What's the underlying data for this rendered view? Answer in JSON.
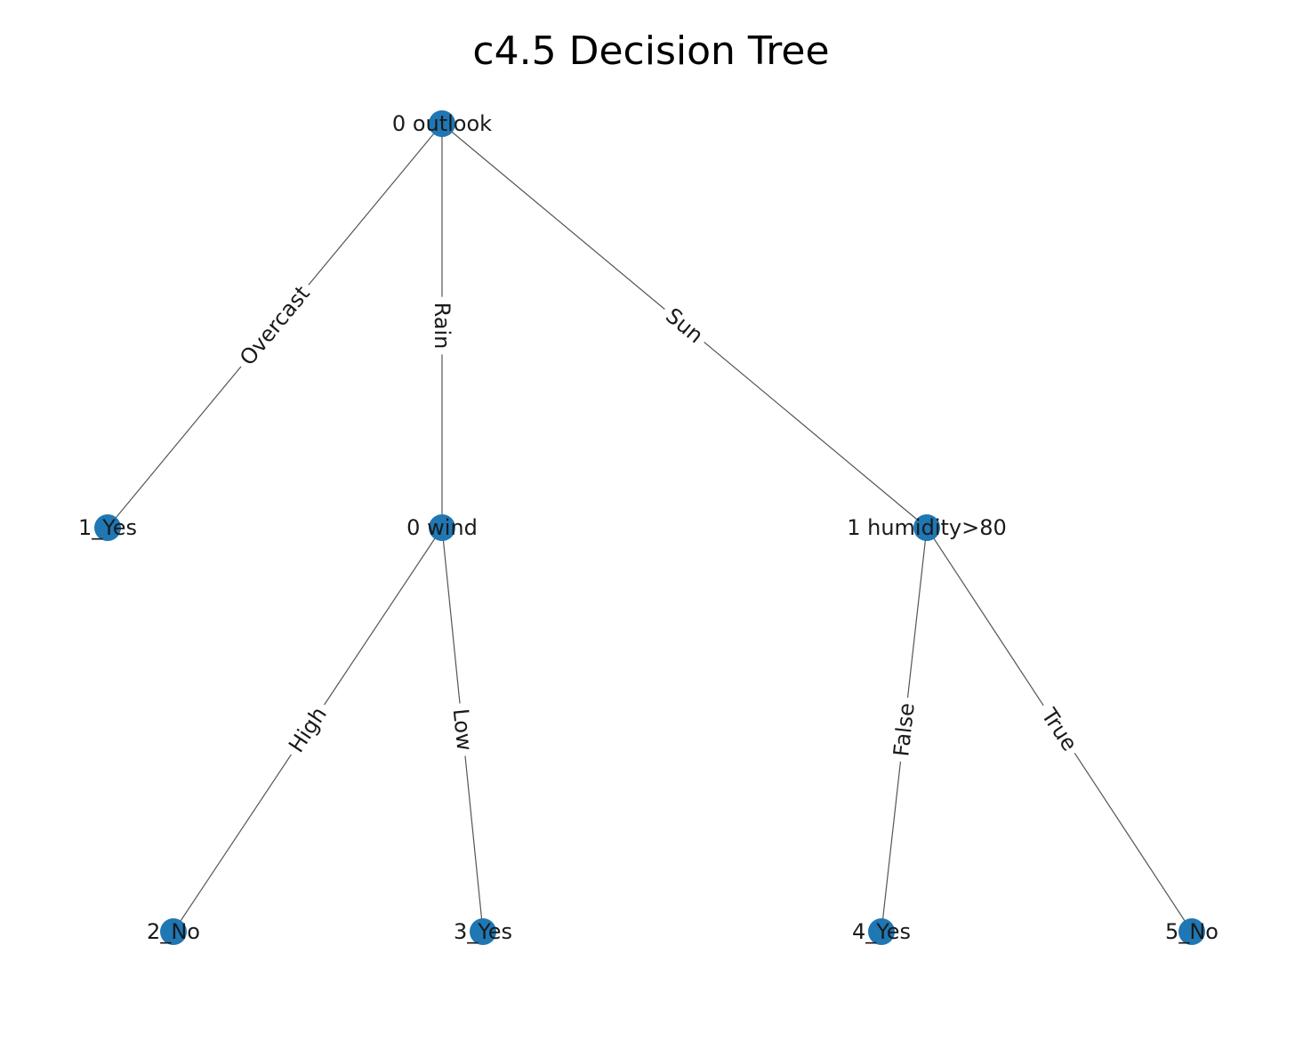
{
  "title": "c4.5 Decision Tree",
  "colors": {
    "node": "#1f77b4",
    "edge": "#555555",
    "text": "#1a1a1a",
    "background": "#ffffff"
  },
  "nodes": [
    {
      "id": "n0",
      "label": "0 outlook"
    },
    {
      "id": "n1",
      "label": "1_Yes"
    },
    {
      "id": "n2",
      "label": "0 wind"
    },
    {
      "id": "n3",
      "label": "1 humidity>80"
    },
    {
      "id": "n4",
      "label": "2_No"
    },
    {
      "id": "n5",
      "label": "3_Yes"
    },
    {
      "id": "n6",
      "label": "4_Yes"
    },
    {
      "id": "n7",
      "label": "5_No"
    }
  ],
  "edges": [
    {
      "from": "n0",
      "to": "n1",
      "label": "Overcast"
    },
    {
      "from": "n0",
      "to": "n2",
      "label": "Rain"
    },
    {
      "from": "n0",
      "to": "n3",
      "label": "Sun"
    },
    {
      "from": "n2",
      "to": "n4",
      "label": "High"
    },
    {
      "from": "n2",
      "to": "n5",
      "label": "Low"
    },
    {
      "from": "n3",
      "to": "n6",
      "label": "False"
    },
    {
      "from": "n3",
      "to": "n7",
      "label": "True"
    }
  ]
}
